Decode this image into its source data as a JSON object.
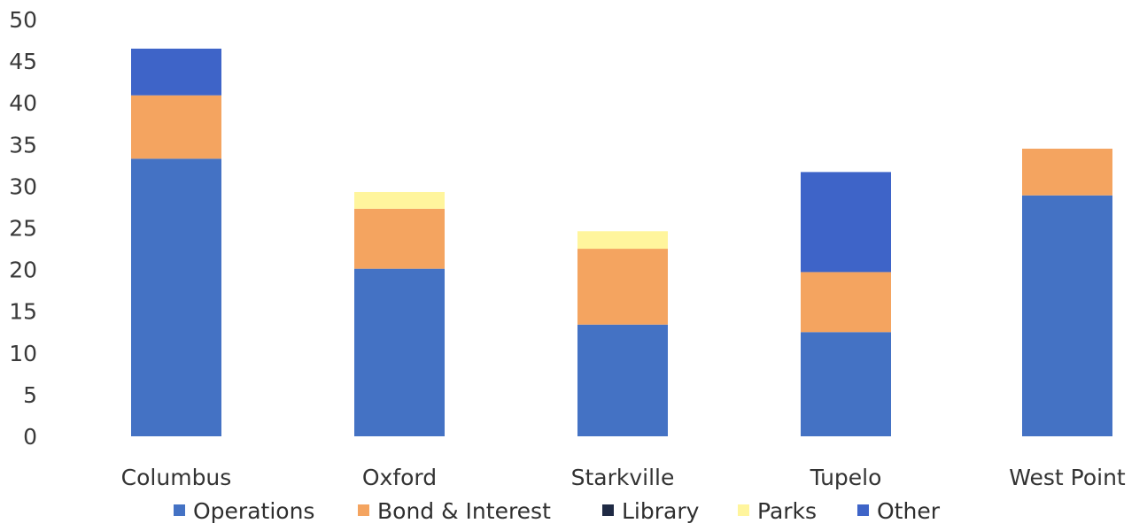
{
  "chart_data": {
    "type": "bar",
    "stacked": true,
    "title": "",
    "xlabel": "",
    "ylabel": "",
    "ylim": [
      0,
      50
    ],
    "yticks": [
      0,
      5,
      10,
      15,
      20,
      25,
      30,
      35,
      40,
      45,
      50
    ],
    "grid": false,
    "legend_position": "bottom",
    "categories": [
      "Columbus",
      "Oxford",
      "Starkville",
      "Tupelo",
      "West Point"
    ],
    "series": [
      {
        "name": "Operations",
        "color": "#4472c4",
        "values": [
          33.3,
          20.1,
          13.4,
          12.5,
          28.9
        ]
      },
      {
        "name": "Bond & Interest",
        "color": "#f4a460",
        "values": [
          7.6,
          7.2,
          9.1,
          7.2,
          5.6
        ]
      },
      {
        "name": "Library",
        "color": "#1f2a44",
        "values": [
          0,
          0,
          0,
          0,
          0
        ]
      },
      {
        "name": "Parks",
        "color": "#fff59d",
        "values": [
          0,
          2.0,
          2.1,
          0,
          0
        ]
      },
      {
        "name": "Other",
        "color": "#3e64c8",
        "values": [
          5.6,
          0,
          0,
          12.0,
          0
        ]
      }
    ]
  }
}
